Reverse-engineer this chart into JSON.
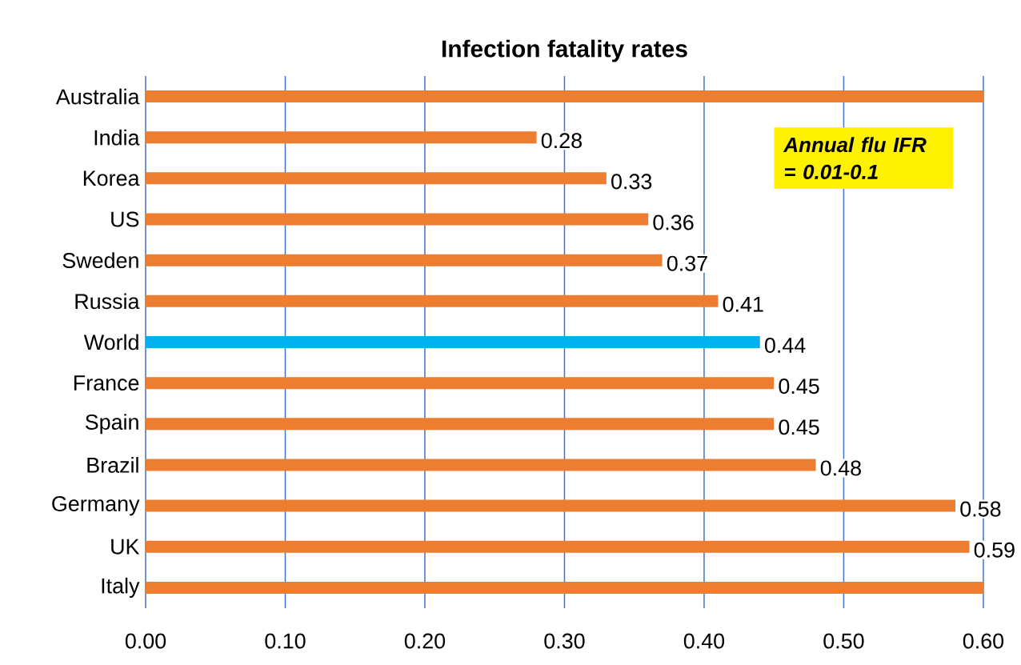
{
  "chart_data": {
    "type": "bar",
    "orientation": "horizontal",
    "title": "Infection fatality rates",
    "categories": [
      "Australia",
      "India",
      "Korea",
      "US",
      "Sweden",
      "Russia",
      "World",
      "France",
      "Spain",
      "Brazil",
      "Germany",
      "UK",
      "Italy"
    ],
    "values": [
      0.6,
      0.28,
      0.33,
      0.36,
      0.37,
      0.41,
      0.44,
      0.45,
      0.45,
      0.48,
      0.58,
      0.59,
      0.6
    ],
    "value_labels": [
      null,
      "0.28",
      "0.33",
      "0.36",
      "0.37",
      "0.41",
      "0.44",
      "0.45",
      "0.45",
      "0.48",
      "0.58",
      "0.59",
      null
    ],
    "colors": [
      "#ed7d31",
      "#ed7d31",
      "#ed7d31",
      "#ed7d31",
      "#ed7d31",
      "#ed7d31",
      "#00b0f0",
      "#ed7d31",
      "#ed7d31",
      "#ed7d31",
      "#ed7d31",
      "#ed7d31",
      "#ed7d31"
    ],
    "xlim": [
      0,
      0.6
    ],
    "xticks": [
      {
        "value": 0,
        "label": "0.00"
      },
      {
        "value": 0.1,
        "label": "0.10"
      },
      {
        "value": 0.2,
        "label": "0.20"
      },
      {
        "value": 0.3,
        "label": "0.30"
      },
      {
        "value": 0.4,
        "label": "0.40"
      },
      {
        "value": 0.5,
        "label": "0.50"
      },
      {
        "value": 0.6,
        "label": "0.60"
      }
    ],
    "grid": "x",
    "annotations": [
      "Annual flu IFR = 0.01-0.1"
    ]
  }
}
